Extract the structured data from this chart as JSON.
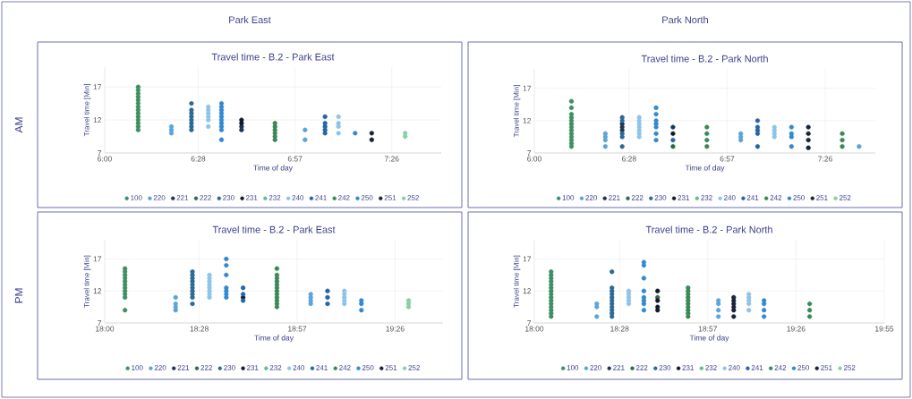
{
  "chart_data": [
    {
      "type": "scatter",
      "title": "Travel time - B.2 - Park East",
      "xlabel": "Time of day",
      "ylabel": "Travel time [Min]",
      "annotations": [
        "Park East",
        "AM"
      ],
      "xlim": [
        6.0,
        7.68
      ],
      "ylim": [
        7,
        20
      ],
      "xticks": [
        {
          "value": 6.0,
          "label": "6:00"
        },
        {
          "value": 6.4667,
          "label": "6:28"
        },
        {
          "value": 6.95,
          "label": "6:57"
        },
        {
          "value": 7.4333,
          "label": "7:26"
        }
      ],
      "yticks": [
        7,
        12,
        17
      ],
      "grid": true,
      "legend": "bottom",
      "marker": "circle",
      "series": [
        {
          "name": "100",
          "color": "#3f8f63",
          "x": [
            6.167,
            6.167,
            6.167,
            6.167,
            6.167,
            6.167,
            6.167,
            6.167,
            6.167,
            6.167,
            6.167,
            6.167,
            6.167,
            6.167
          ],
          "values": [
            10.5,
            11,
            11.5,
            12,
            12.5,
            13,
            13.5,
            14,
            14.5,
            15,
            15.5,
            16,
            16.5,
            17
          ]
        },
        {
          "name": "220",
          "color": "#5ba4d8",
          "x": [
            6.333,
            6.333,
            6.333,
            7.0,
            7.0
          ],
          "values": [
            10,
            10.5,
            11,
            9,
            10.5
          ]
        },
        {
          "name": "221",
          "color": "#1c3557",
          "x": [
            6.683,
            6.683
          ],
          "values": [
            10.5,
            11
          ]
        },
        {
          "name": "222",
          "color": "#2d6a45"
        },
        {
          "name": "230",
          "color": "#2b6a96",
          "x": [
            6.433,
            6.433,
            6.433,
            6.433,
            6.433,
            6.433,
            6.433,
            6.433
          ],
          "values": [
            10.5,
            11,
            11.5,
            12,
            12.5,
            13,
            13.5,
            14.5
          ]
        },
        {
          "name": "231",
          "color": "#0f1a2c",
          "x": [
            6.683,
            6.683
          ],
          "values": [
            11.5,
            12
          ]
        },
        {
          "name": "232",
          "color": "#66bb8a"
        },
        {
          "name": "240",
          "color": "#8ec4e8",
          "x": [
            6.517,
            6.517,
            6.517,
            6.517,
            6.517,
            6.517,
            7.167,
            7.167,
            7.167,
            7.167
          ],
          "values": [
            11,
            12,
            12.5,
            13,
            13.5,
            14,
            10,
            11,
            11.5,
            12.5
          ]
        },
        {
          "name": "241",
          "color": "#2664a6",
          "x": [
            7.1,
            7.1,
            7.1,
            7.1,
            7.1
          ],
          "values": [
            10,
            10.5,
            11,
            11.5,
            12.5
          ]
        },
        {
          "name": "242",
          "color": "#3b8757",
          "x": [
            6.85,
            6.85,
            6.85,
            6.85,
            6.85,
            6.85
          ],
          "values": [
            9,
            9.5,
            10,
            10.5,
            11,
            11.5
          ]
        },
        {
          "name": "250",
          "color": "#3389cf",
          "x": [
            6.583,
            6.583,
            6.583,
            6.583,
            6.583,
            6.583,
            6.583,
            6.583,
            6.583,
            6.583,
            7.25
          ],
          "values": [
            9,
            10.5,
            11,
            11.5,
            12,
            12.5,
            13,
            13.5,
            14,
            14.5,
            10
          ]
        },
        {
          "name": "251",
          "color": "#17243c",
          "x": [
            7.333,
            7.333
          ],
          "values": [
            9,
            10
          ]
        },
        {
          "name": "252",
          "color": "#86d0a4",
          "x": [
            7.5,
            7.5
          ],
          "values": [
            9.5,
            10
          ]
        }
      ]
    },
    {
      "type": "scatter",
      "title": "Travel time - B.2 - Park North",
      "xlabel": "Time of day",
      "ylabel": "Travel time [Min]",
      "annotations": [
        "Park North"
      ],
      "xlim": [
        6.0,
        7.68
      ],
      "ylim": [
        7,
        20
      ],
      "xticks": [
        {
          "value": 6.0,
          "label": "6:00"
        },
        {
          "value": 6.4667,
          "label": "6:28"
        },
        {
          "value": 6.95,
          "label": "6:57"
        },
        {
          "value": 7.4333,
          "label": "7:26"
        }
      ],
      "yticks": [
        7,
        12,
        17
      ],
      "grid": true,
      "legend": "bottom",
      "marker": "circle",
      "series": [
        {
          "name": "100",
          "color": "#3f8f63",
          "x": [
            6.183,
            6.183,
            6.183,
            6.183,
            6.183,
            6.183,
            6.183,
            6.183,
            6.183,
            6.183,
            6.183,
            6.183,
            6.183
          ],
          "values": [
            8,
            8.5,
            9,
            9.5,
            10,
            10.5,
            11,
            11.5,
            12,
            12.5,
            13,
            14,
            15
          ]
        },
        {
          "name": "220",
          "color": "#5ba4d8",
          "x": [
            6.35,
            6.35,
            6.35,
            6.35,
            7.017,
            7.017,
            7.017,
            7.6
          ],
          "values": [
            8,
            9,
            9.5,
            10,
            9,
            9.5,
            10,
            8
          ]
        },
        {
          "name": "221",
          "color": "#1c3557",
          "x": [
            6.433,
            6.433,
            6.433,
            6.683
          ],
          "values": [
            10.5,
            11,
            11.5,
            11
          ]
        },
        {
          "name": "222",
          "color": "#2d6a45",
          "x": [
            6.683
          ],
          "values": [
            8
          ]
        },
        {
          "name": "230",
          "color": "#2b6a96",
          "x": [
            6.433,
            6.433,
            6.433,
            6.433,
            6.433
          ],
          "values": [
            8,
            9.5,
            10,
            12,
            12.5
          ]
        },
        {
          "name": "231",
          "color": "#0f1a2c",
          "x": [
            6.683
          ],
          "values": [
            10
          ]
        },
        {
          "name": "232",
          "color": "#66bb8a"
        },
        {
          "name": "240",
          "color": "#8ec4e8",
          "x": [
            6.517,
            6.517,
            6.517,
            6.517,
            6.517,
            6.517,
            6.517,
            7.183,
            7.183,
            7.183,
            7.183
          ],
          "values": [
            9.5,
            10,
            10.5,
            11,
            11.5,
            12,
            12.5,
            9.5,
            10,
            10.5,
            11
          ]
        },
        {
          "name": "241",
          "color": "#2664a6",
          "x": [
            6.683,
            7.1,
            7.1,
            7.1,
            7.1,
            7.1
          ],
          "values": [
            9,
            8,
            10,
            10.5,
            11,
            12
          ]
        },
        {
          "name": "242",
          "color": "#3b8757",
          "x": [
            6.85,
            6.85,
            6.85,
            6.85,
            7.517,
            7.517,
            7.517
          ],
          "values": [
            8,
            9,
            10,
            11,
            8,
            9,
            10
          ]
        },
        {
          "name": "250",
          "color": "#3389cf",
          "x": [
            6.6,
            6.6,
            6.6,
            6.6,
            6.6,
            6.6,
            6.6,
            7.267,
            7.267,
            7.267,
            7.267
          ],
          "values": [
            9,
            10,
            11,
            11.5,
            12,
            13,
            14,
            8,
            9.5,
            10,
            11
          ]
        },
        {
          "name": "251",
          "color": "#17243c",
          "x": [
            7.35,
            7.35,
            7.35,
            7.35
          ],
          "values": [
            7.8,
            9,
            10,
            11
          ]
        },
        {
          "name": "252",
          "color": "#86d0a4"
        }
      ]
    },
    {
      "type": "scatter",
      "title": "Travel time - B.2 - Park East",
      "xlabel": "Time of day",
      "ylabel": "Travel time [Min]",
      "annotations": [
        "PM"
      ],
      "xlim": [
        18.0,
        19.67
      ],
      "ylim": [
        7,
        20
      ],
      "xticks": [
        {
          "value": 18.0,
          "label": "18:00"
        },
        {
          "value": 18.4667,
          "label": "18:28"
        },
        {
          "value": 18.95,
          "label": "18:57"
        },
        {
          "value": 19.4333,
          "label": "19:26"
        }
      ],
      "yticks": [
        7,
        12,
        17
      ],
      "grid": true,
      "legend": "bottom",
      "marker": "circle",
      "series": [
        {
          "name": "100",
          "color": "#3f8f63",
          "x": [
            18.1,
            18.1,
            18.1,
            18.1,
            18.1,
            18.1,
            18.1,
            18.1,
            18.1,
            18.1,
            18.1
          ],
          "values": [
            9,
            11,
            11.5,
            12,
            12.5,
            13,
            13.5,
            14,
            14.5,
            15,
            15.5
          ]
        },
        {
          "name": "220",
          "color": "#5ba4d8",
          "x": [
            18.35,
            18.35,
            18.35,
            18.35,
            19.017,
            19.017,
            19.017,
            19.017
          ],
          "values": [
            9,
            9.5,
            10,
            11,
            10,
            10.5,
            11,
            11.5
          ]
        },
        {
          "name": "221",
          "color": "#1c3557"
        },
        {
          "name": "222",
          "color": "#2d6a45"
        },
        {
          "name": "230",
          "color": "#2b6a96",
          "x": [
            18.433,
            18.433,
            18.433,
            18.433,
            18.433,
            18.433,
            18.433,
            18.433,
            18.433,
            18.433
          ],
          "values": [
            10,
            11,
            11.5,
            12,
            12.5,
            13,
            13.5,
            14,
            14.5,
            15
          ]
        },
        {
          "name": "231",
          "color": "#0f1a2c",
          "x": [
            18.683
          ],
          "values": [
            11
          ]
        },
        {
          "name": "232",
          "color": "#66bb8a"
        },
        {
          "name": "240",
          "color": "#8ec4e8",
          "x": [
            18.517,
            18.517,
            18.517,
            18.517,
            18.517,
            18.517,
            18.517,
            18.517,
            19.183,
            19.183,
            19.183,
            19.183,
            19.183
          ],
          "values": [
            11,
            11.5,
            12,
            12.5,
            13,
            13.5,
            14,
            14.5,
            10,
            10.5,
            11,
            11.5,
            12
          ]
        },
        {
          "name": "241",
          "color": "#2664a6",
          "x": [
            18.683,
            18.683,
            18.683,
            19.1,
            19.1,
            19.1
          ],
          "values": [
            10.5,
            11.5,
            12.5,
            10,
            11,
            12
          ]
        },
        {
          "name": "242",
          "color": "#3b8757",
          "x": [
            18.85,
            18.85,
            18.85,
            18.85,
            18.85,
            18.85,
            18.85,
            18.85,
            18.85,
            18.85,
            18.85,
            18.85
          ],
          "values": [
            9.5,
            10,
            10.5,
            11,
            11.5,
            12,
            12.5,
            13,
            13.5,
            14,
            14.5,
            15.5
          ]
        },
        {
          "name": "250",
          "color": "#3389cf",
          "x": [
            18.6,
            18.6,
            18.6,
            18.6,
            18.6,
            18.6,
            18.6,
            19.267,
            19.267,
            19.267
          ],
          "values": [
            11,
            11.5,
            12,
            12.5,
            14.5,
            16,
            17,
            9,
            10,
            10.5
          ]
        },
        {
          "name": "251",
          "color": "#17243c"
        },
        {
          "name": "252",
          "color": "#86d0a4",
          "x": [
            19.5,
            19.5,
            19.5
          ],
          "values": [
            9.5,
            10,
            10.5
          ]
        }
      ]
    },
    {
      "type": "scatter",
      "title": "Travel time - B.2 - Park North",
      "xlabel": "Time of day",
      "ylabel": "Travel time [Min]",
      "xlim": [
        18.0,
        19.9167
      ],
      "ylim": [
        7,
        20
      ],
      "xticks": [
        {
          "value": 18.0,
          "label": "18:00"
        },
        {
          "value": 18.4667,
          "label": "18:28"
        },
        {
          "value": 18.95,
          "label": "18:57"
        },
        {
          "value": 19.4333,
          "label": "19:26"
        },
        {
          "value": 19.9167,
          "label": "19:55"
        }
      ],
      "yticks": [
        7,
        12,
        17
      ],
      "grid": true,
      "legend": "bottom",
      "marker": "circle",
      "series": [
        {
          "name": "100",
          "color": "#3f8f63",
          "x": [
            18.092,
            18.092,
            18.092,
            18.092,
            18.092,
            18.092,
            18.092,
            18.092,
            18.092,
            18.092,
            18.092,
            18.092,
            18.092,
            18.092,
            18.092
          ],
          "values": [
            8,
            8.5,
            9,
            9.5,
            10,
            10.5,
            11,
            11.5,
            12,
            12.5,
            13,
            13.5,
            14,
            14.5,
            15
          ]
        },
        {
          "name": "220",
          "color": "#5ba4d8",
          "x": [
            18.342,
            18.342,
            18.342,
            19.008,
            19.008,
            19.008,
            19.008
          ],
          "values": [
            8,
            9.5,
            10,
            8,
            9,
            10,
            10.5
          ]
        },
        {
          "name": "221",
          "color": "#1c3557"
        },
        {
          "name": "222",
          "color": "#2d6a45",
          "x": [
            18.675
          ],
          "values": [
            11
          ]
        },
        {
          "name": "230",
          "color": "#2b6a96",
          "x": [
            18.425,
            18.425,
            18.425,
            18.425,
            18.425,
            18.425,
            18.425,
            18.425,
            18.425,
            18.425,
            18.425
          ],
          "values": [
            8,
            8.5,
            9,
            9.5,
            10,
            10.5,
            11,
            11.5,
            12,
            12.5,
            15
          ]
        },
        {
          "name": "231",
          "color": "#0f1a2c",
          "x": [
            18.675,
            18.675,
            18.675,
            18.675
          ],
          "values": [
            9,
            9.5,
            10.5,
            12
          ]
        },
        {
          "name": "232",
          "color": "#66bb8a"
        },
        {
          "name": "240",
          "color": "#8ec4e8",
          "x": [
            18.517,
            18.517,
            18.517,
            18.517,
            18.517,
            19.175,
            19.175,
            19.175,
            19.175,
            19.175
          ],
          "values": [
            10,
            10.5,
            11,
            11.5,
            12,
            9,
            10,
            10.5,
            11,
            11.5
          ]
        },
        {
          "name": "241",
          "color": "#2664a6"
        },
        {
          "name": "242",
          "color": "#3b8757",
          "x": [
            18.842,
            18.842,
            18.842,
            18.842,
            18.842,
            18.842,
            18.842,
            18.842,
            18.842,
            18.842,
            19.508,
            19.508,
            19.508
          ],
          "values": [
            8,
            8.5,
            9,
            9.5,
            10,
            10.5,
            11,
            11.5,
            12,
            12.5,
            8,
            9,
            10
          ]
        },
        {
          "name": "250",
          "color": "#3389cf",
          "x": [
            18.6,
            18.6,
            18.6,
            18.6,
            18.6,
            18.6,
            18.6,
            18.6,
            19.258,
            19.258,
            19.258,
            19.258
          ],
          "values": [
            9,
            10,
            10.5,
            11,
            12,
            14,
            16,
            16.5,
            8,
            9,
            10,
            10.5
          ]
        },
        {
          "name": "251",
          "color": "#17243c",
          "x": [
            19.092,
            19.092,
            19.092,
            19.092,
            19.092,
            19.092
          ],
          "values": [
            8,
            9,
            9.5,
            10,
            10.5,
            11
          ]
        },
        {
          "name": "252",
          "color": "#86d0a4"
        }
      ]
    }
  ]
}
